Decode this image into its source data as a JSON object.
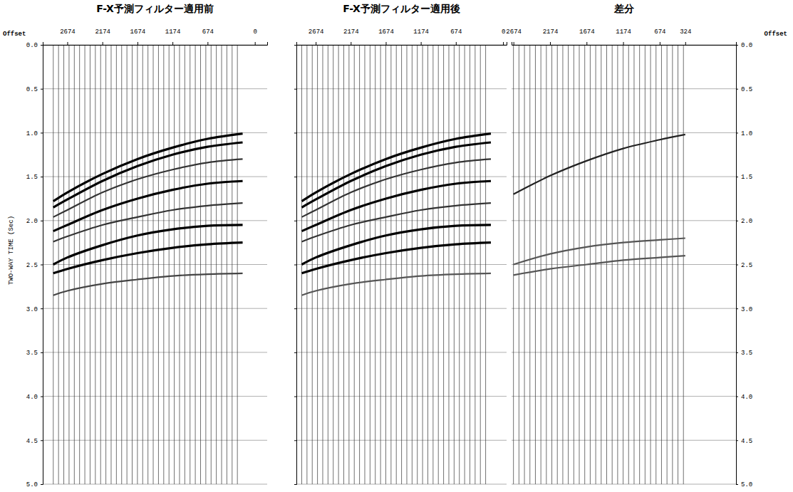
{
  "chart_data": [
    {
      "type": "wiggle",
      "title": "F-X予測フィルター適用前",
      "x_label": "Offset",
      "y_label": "TWO-WAY TIME (Sec)",
      "xlim": [
        3024,
        -176
      ],
      "xticks": [
        2674,
        2174,
        1674,
        1174,
        674,
        0
      ],
      "ylim": [
        0,
        5
      ],
      "yticks": [
        {
          "value": 0,
          "label": "0.0"
        },
        {
          "value": 0.5,
          "label": "0.5"
        },
        {
          "value": 1,
          "label": "1.0"
        },
        {
          "value": 1.5,
          "label": "1.5"
        },
        {
          "value": 2,
          "label": "2.0"
        },
        {
          "value": 2.5,
          "label": "2.5"
        },
        {
          "value": 3,
          "label": "3.0"
        },
        {
          "value": 3.5,
          "label": "3.5"
        },
        {
          "value": 4,
          "label": "4.0"
        },
        {
          "value": 4.5,
          "label": "4.5"
        },
        {
          "value": 5,
          "label": "5.0"
        }
      ],
      "grid": true,
      "traces": [
        2874,
        2799,
        2724,
        2649,
        2574,
        2499,
        2424,
        2349,
        2274,
        2199,
        2124,
        2049,
        1974,
        1899,
        1824,
        1749,
        1674,
        1599,
        1524,
        1449,
        1374,
        1299,
        1224,
        1149,
        1074,
        999,
        924,
        849,
        774,
        699,
        624,
        549,
        474,
        399,
        324,
        249
      ],
      "x": [
        2874,
        2674,
        2174,
        1674,
        1174,
        674,
        174
      ],
      "series": [
        {
          "color": "#000000",
          "values": [
            1.78,
            1.68,
            1.47,
            1.3,
            1.17,
            1.07,
            1.01
          ]
        },
        {
          "color": "#000000",
          "values": [
            1.85,
            1.76,
            1.55,
            1.38,
            1.25,
            1.16,
            1.11
          ]
        },
        {
          "color": "#333333",
          "values": [
            1.96,
            1.88,
            1.68,
            1.53,
            1.42,
            1.34,
            1.3
          ]
        },
        {
          "color": "#000000",
          "values": [
            2.12,
            2.05,
            1.88,
            1.75,
            1.65,
            1.58,
            1.55
          ]
        },
        {
          "color": "#333333",
          "values": [
            2.24,
            2.18,
            2.05,
            1.96,
            1.88,
            1.83,
            1.8
          ]
        },
        {
          "color": "#000000",
          "values": [
            2.5,
            2.42,
            2.28,
            2.17,
            2.1,
            2.06,
            2.05
          ]
        },
        {
          "color": "#000000",
          "values": [
            2.6,
            2.55,
            2.45,
            2.37,
            2.31,
            2.27,
            2.25
          ]
        },
        {
          "color": "#444444",
          "values": [
            2.85,
            2.8,
            2.72,
            2.67,
            2.63,
            2.61,
            2.6
          ]
        }
      ]
    },
    {
      "type": "wiggle",
      "title": "F-X予測フィルター適用後",
      "xlim": [
        2950,
        -50
      ],
      "xticks": [
        2674,
        2174,
        1674,
        1174,
        674,
        0
      ],
      "ylim": [
        0,
        5
      ],
      "yticks": [
        {
          "value": 0,
          "label": "0.0"
        },
        {
          "value": 0.5,
          "label": "0.5"
        },
        {
          "value": 1,
          "label": "1.0"
        },
        {
          "value": 1.5,
          "label": "1.5"
        },
        {
          "value": 2,
          "label": "2.0"
        },
        {
          "value": 2.5,
          "label": "2.5"
        },
        {
          "value": 3,
          "label": "3.0"
        },
        {
          "value": 3.5,
          "label": "3.5"
        },
        {
          "value": 4,
          "label": "4.0"
        },
        {
          "value": 4.5,
          "label": "4.5"
        },
        {
          "value": 5,
          "label": "5.0"
        }
      ],
      "grid": true,
      "tick_labels": "x",
      "traces": [
        2874,
        2799,
        2724,
        2649,
        2574,
        2499,
        2424,
        2349,
        2274,
        2199,
        2124,
        2049,
        1974,
        1899,
        1824,
        1749,
        1674,
        1599,
        1524,
        1449,
        1374,
        1299,
        1224,
        1149,
        1074,
        999,
        924,
        849,
        774,
        699,
        624,
        549,
        474,
        399,
        324,
        249
      ],
      "x": [
        2874,
        2674,
        2174,
        1674,
        1174,
        674,
        174
      ],
      "series": [
        {
          "color": "#000000",
          "values": [
            1.78,
            1.68,
            1.47,
            1.3,
            1.17,
            1.07,
            1.01
          ]
        },
        {
          "color": "#000000",
          "values": [
            1.85,
            1.76,
            1.55,
            1.38,
            1.25,
            1.16,
            1.11
          ]
        },
        {
          "color": "#333333",
          "values": [
            1.96,
            1.88,
            1.68,
            1.53,
            1.42,
            1.34,
            1.3
          ]
        },
        {
          "color": "#000000",
          "values": [
            2.12,
            2.05,
            1.88,
            1.75,
            1.65,
            1.58,
            1.55
          ]
        },
        {
          "color": "#333333",
          "values": [
            2.24,
            2.18,
            2.05,
            1.96,
            1.88,
            1.83,
            1.8
          ]
        },
        {
          "color": "#000000",
          "values": [
            2.5,
            2.42,
            2.28,
            2.17,
            2.1,
            2.06,
            2.05
          ]
        },
        {
          "color": "#000000",
          "values": [
            2.6,
            2.55,
            2.45,
            2.37,
            2.31,
            2.27,
            2.25
          ]
        },
        {
          "color": "#555555",
          "values": [
            2.85,
            2.8,
            2.72,
            2.67,
            2.63,
            2.61,
            2.6
          ]
        }
      ]
    },
    {
      "type": "wiggle",
      "title": "差分",
      "x_label": "Offset",
      "xlim": [
        2700,
        -370
      ],
      "xticks": [
        2674,
        2174,
        1674,
        1174,
        674,
        324
      ],
      "ylim": [
        0,
        5
      ],
      "yticks": [
        {
          "value": 0,
          "label": "0.0"
        },
        {
          "value": 0.5,
          "label": "0.5"
        },
        {
          "value": 1,
          "label": "1.0"
        },
        {
          "value": 1.5,
          "label": "1.5"
        },
        {
          "value": 2,
          "label": "2.0"
        },
        {
          "value": 2.5,
          "label": "2.5"
        },
        {
          "value": 3,
          "label": "3.0"
        },
        {
          "value": 3.5,
          "label": "3.5"
        },
        {
          "value": 4,
          "label": "4.0"
        },
        {
          "value": 4.5,
          "label": "4.5"
        },
        {
          "value": 5,
          "label": "5.0"
        }
      ],
      "grid": true,
      "traces": [
        2674,
        2599,
        2524,
        2449,
        2374,
        2299,
        2224,
        2149,
        2074,
        1999,
        1924,
        1849,
        1774,
        1699,
        1624,
        1549,
        1474,
        1399,
        1324,
        1249,
        1174,
        1099,
        1024,
        949,
        874,
        799,
        724,
        649,
        574,
        499,
        424,
        349
      ],
      "x": [
        2674,
        2174,
        1674,
        1174,
        674,
        324
      ],
      "series": [
        {
          "color": "#222222",
          "values": [
            1.7,
            1.49,
            1.32,
            1.18,
            1.08,
            1.02
          ]
        },
        {
          "color": "#555555",
          "values": [
            2.5,
            2.38,
            2.3,
            2.25,
            2.22,
            2.2
          ]
        },
        {
          "color": "#555555",
          "values": [
            2.62,
            2.55,
            2.5,
            2.45,
            2.42,
            2.4
          ]
        }
      ]
    }
  ]
}
